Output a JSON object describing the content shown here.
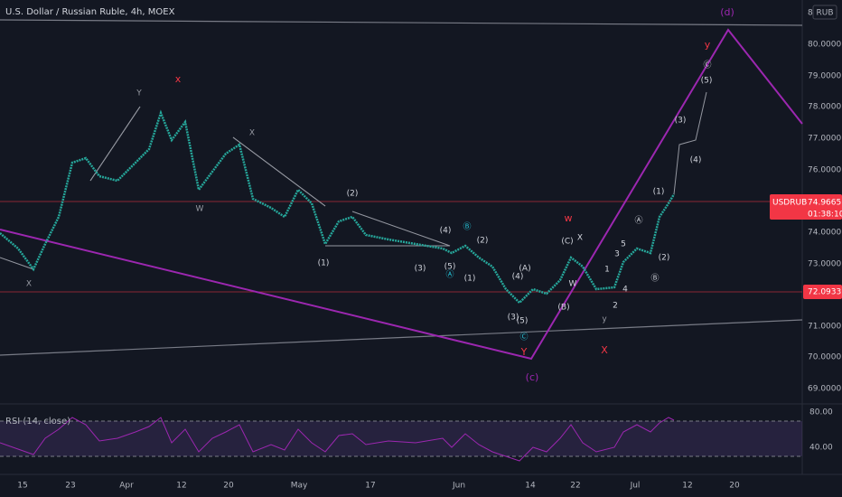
{
  "header": {
    "title": "U.S. Dollar / Russian Ruble, 4h, MOEX"
  },
  "price_axis": {
    "currency": "RUB",
    "top": "8",
    "labels": [
      "80.0000",
      "79.0000",
      "78.0000",
      "77.0000",
      "76.0000",
      "74.0000",
      "73.0000",
      "71.0000",
      "70.0000",
      "69.0000"
    ]
  },
  "price_tags": {
    "symbol": "USDRUB",
    "price": "74.9665",
    "countdown": "01:38:10",
    "level": "72.0933"
  },
  "rsi": {
    "label": "RSI (14, close)",
    "ticks": [
      "80.00",
      "40.00"
    ]
  },
  "time_axis": [
    "15",
    "23",
    "Apr",
    "12",
    "20",
    "May",
    "17",
    "Jun",
    "14",
    "22",
    "Jul",
    "12",
    "20"
  ],
  "annotations": [
    "(d)",
    "y",
    "Ⓒ",
    "(5)",
    "(3)",
    "(4)",
    "(1)",
    "Ⓐ",
    "(2)",
    "Ⓑ",
    "5",
    "3",
    "1",
    "4",
    "2",
    "y",
    "w",
    "(C)",
    "X",
    "(A)",
    "(4)",
    "(B)",
    "W",
    "(3)",
    "(5)",
    "Ⓒ",
    "Y",
    "(c)",
    "X",
    "(4)",
    "Ⓑ",
    "(2)",
    "(5)",
    "Ⓐ",
    "(1)",
    "(3)",
    "(2)",
    "(1)",
    "X",
    "W",
    "Y",
    "x",
    "X"
  ]
}
